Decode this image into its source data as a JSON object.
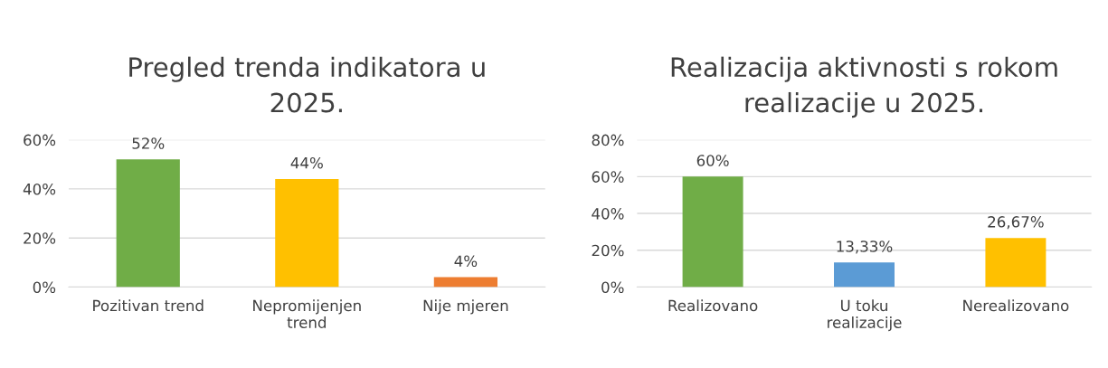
{
  "chart_data": [
    {
      "type": "bar",
      "title": "Pregled trenda indikatora u\n2025.",
      "categories": [
        "Pozitivan trend",
        "Nepromijenjen\ntrend",
        "Nije mjeren"
      ],
      "values": [
        52,
        44,
        4
      ],
      "colors": [
        "#70ad47",
        "#ffc000",
        "#ed7d31"
      ],
      "value_labels": [
        "52%",
        "44%",
        "4%"
      ],
      "ylim": [
        0,
        60
      ],
      "yticks": [
        {
          "value": 0,
          "label": "0%"
        },
        {
          "value": 20,
          "label": "20%"
        },
        {
          "value": 40,
          "label": "40%"
        },
        {
          "value": 60,
          "label": "60%"
        }
      ],
      "grid": "y",
      "legend": false
    },
    {
      "type": "bar",
      "title": "Realizacija aktivnosti s rokom\nrealizacije u 2025.",
      "categories": [
        "Realizovano",
        "U toku\nrealizacije",
        "Nerealizovano"
      ],
      "values": [
        60,
        13.33,
        26.67
      ],
      "colors": [
        "#70ad47",
        "#5b9bd5",
        "#ffc000"
      ],
      "value_labels": [
        "60%",
        "13,33%",
        "26,67%"
      ],
      "ylim": [
        0,
        80
      ],
      "yticks": [
        {
          "value": 0,
          "label": "0%"
        },
        {
          "value": 20,
          "label": "20%"
        },
        {
          "value": 40,
          "label": "40%"
        },
        {
          "value": 60,
          "label": "60%"
        },
        {
          "value": 80,
          "label": "80%"
        }
      ],
      "grid": "y",
      "legend": false
    }
  ]
}
